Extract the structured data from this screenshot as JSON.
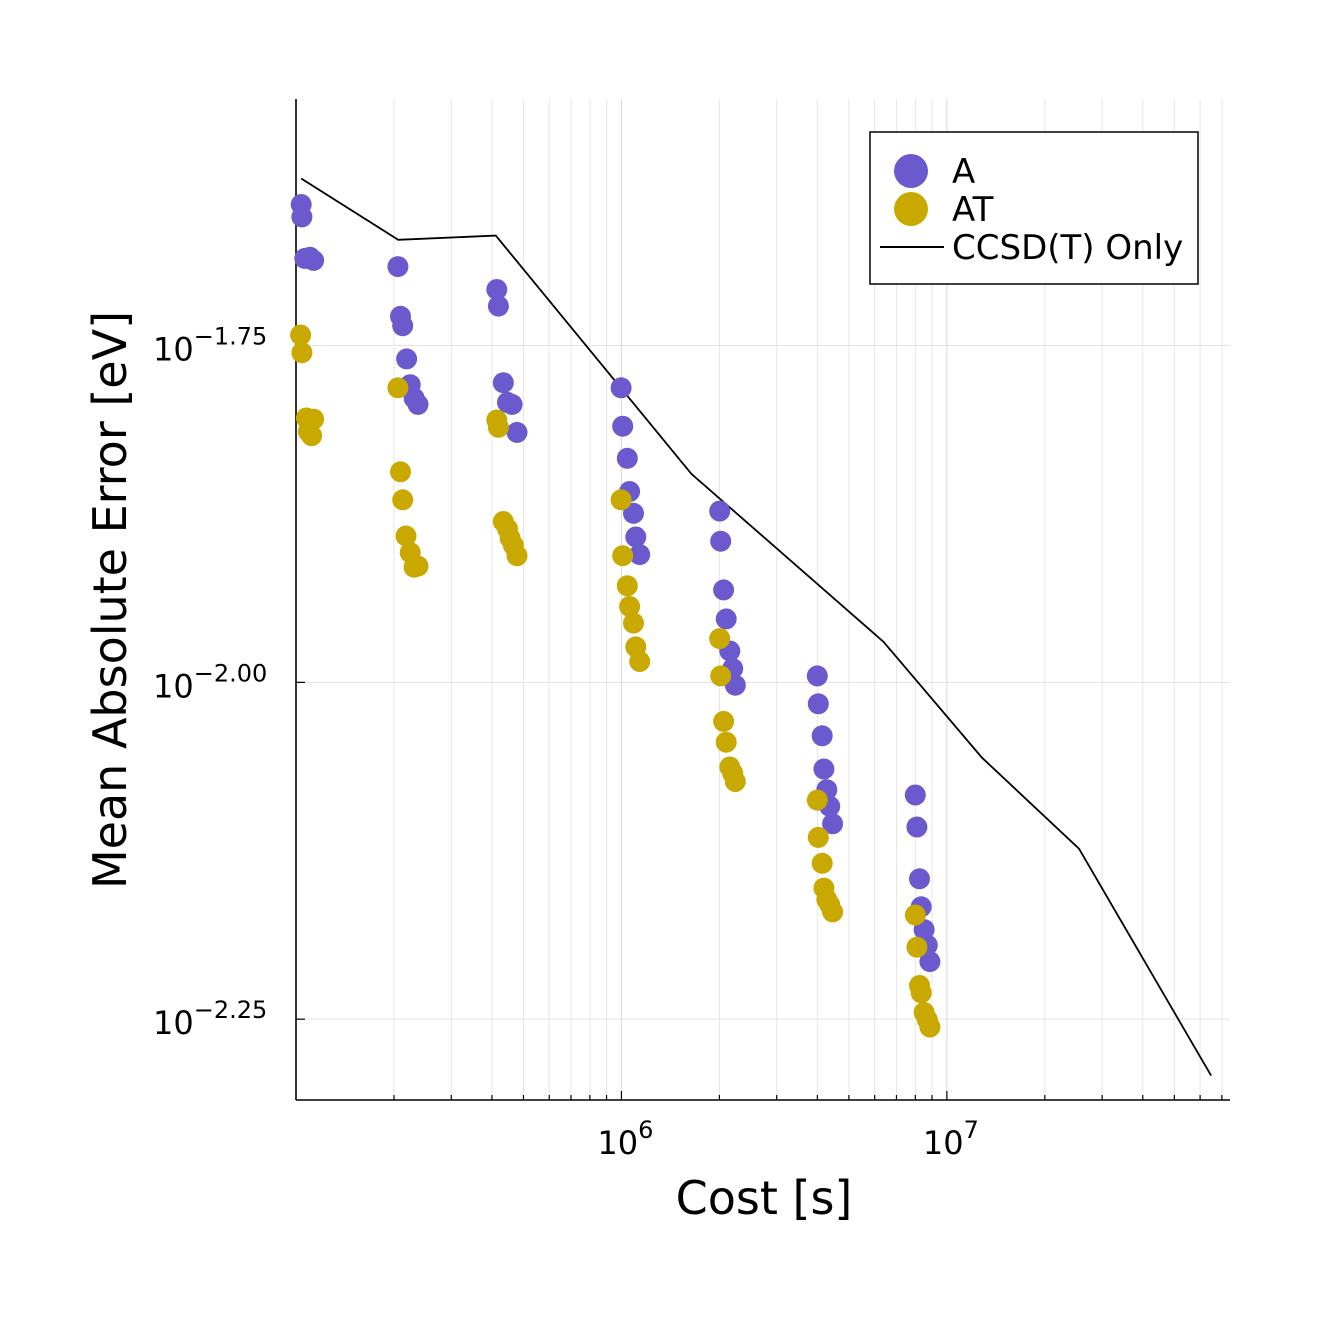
{
  "chart_data": {
    "type": "scatter",
    "title": "",
    "xlabel": "Cost [s]",
    "ylabel": "Mean Absolute Error [eV]",
    "xscale": "log10",
    "yscale": "log10",
    "xlim_log10": [
      5.0,
      7.87
    ],
    "ylim_log10": [
      -2.31,
      -1.567
    ],
    "x_ticks": [
      {
        "exp": 6,
        "base": "10",
        "sup": "6"
      },
      {
        "exp": 7,
        "base": "10",
        "sup": "7"
      }
    ],
    "y_ticks": [
      {
        "exp": -1.75,
        "base": "10",
        "sup": "−1.75"
      },
      {
        "exp": -2.0,
        "base": "10",
        "sup": "−2.00"
      },
      {
        "exp": -2.25,
        "base": "10",
        "sup": "−2.25"
      }
    ],
    "grid": true,
    "legend_position": "top-right",
    "series": [
      {
        "name": "A",
        "kind": "scatter",
        "color": "#6a5acd",
        "points_log10": [
          [
            5.016,
            -1.6453
          ],
          [
            5.018,
            -1.6545
          ],
          [
            5.027,
            -1.6853
          ],
          [
            5.043,
            -1.6845
          ],
          [
            5.054,
            -1.6868
          ],
          [
            5.313,
            -1.6914
          ],
          [
            5.321,
            -1.7283
          ],
          [
            5.328,
            -1.7353
          ],
          [
            5.34,
            -1.7599
          ],
          [
            5.351,
            -1.7791
          ],
          [
            5.363,
            -1.7891
          ],
          [
            5.375,
            -1.7937
          ],
          [
            5.617,
            -1.7084
          ],
          [
            5.622,
            -1.7207
          ],
          [
            5.637,
            -1.7776
          ],
          [
            5.65,
            -1.7922
          ],
          [
            5.664,
            -1.7937
          ],
          [
            5.679,
            -1.8145
          ],
          [
            5.999,
            -1.7814
          ],
          [
            6.004,
            -1.8099
          ],
          [
            6.018,
            -1.8337
          ],
          [
            6.025,
            -1.8583
          ],
          [
            6.037,
            -1.8745
          ],
          [
            6.044,
            -1.8921
          ],
          [
            6.056,
            -1.9052
          ],
          [
            6.302,
            -1.8729
          ],
          [
            6.305,
            -1.8952
          ],
          [
            6.314,
            -1.9314
          ],
          [
            6.322,
            -1.9529
          ],
          [
            6.333,
            -1.9767
          ],
          [
            6.342,
            -1.9898
          ],
          [
            6.35,
            -2.0021
          ],
          [
            6.602,
            -1.9952
          ],
          [
            6.605,
            -2.0159
          ],
          [
            6.617,
            -2.0397
          ],
          [
            6.622,
            -2.0643
          ],
          [
            6.631,
            -2.0797
          ],
          [
            6.64,
            -2.092
          ],
          [
            6.649,
            -2.105
          ],
          [
            6.903,
            -2.0836
          ],
          [
            6.908,
            -2.1074
          ],
          [
            6.916,
            -2.1458
          ],
          [
            6.921,
            -2.1666
          ],
          [
            6.93,
            -2.1835
          ],
          [
            6.94,
            -2.195
          ],
          [
            6.948,
            -2.2073
          ]
        ]
      },
      {
        "name": "AT",
        "kind": "scatter",
        "color": "#c9a900",
        "points_log10": [
          [
            5.014,
            -1.7422
          ],
          [
            5.018,
            -1.7553
          ],
          [
            5.032,
            -1.8038
          ],
          [
            5.038,
            -1.8138
          ],
          [
            5.048,
            -1.8169
          ],
          [
            5.054,
            -1.8046
          ],
          [
            5.313,
            -1.7814
          ],
          [
            5.321,
            -1.8437
          ],
          [
            5.328,
            -1.8645
          ],
          [
            5.338,
            -1.8914
          ],
          [
            5.351,
            -1.9037
          ],
          [
            5.363,
            -1.9145
          ],
          [
            5.375,
            -1.9137
          ],
          [
            5.617,
            -1.8053
          ],
          [
            5.622,
            -1.8107
          ],
          [
            5.637,
            -1.8806
          ],
          [
            5.65,
            -1.886
          ],
          [
            5.658,
            -1.8929
          ],
          [
            5.668,
            -1.8983
          ],
          [
            5.679,
            -1.906
          ],
          [
            5.999,
            -1.8645
          ],
          [
            6.004,
            -1.906
          ],
          [
            6.018,
            -1.9283
          ],
          [
            6.025,
            -1.9437
          ],
          [
            6.037,
            -1.956
          ],
          [
            6.044,
            -1.9737
          ],
          [
            6.056,
            -1.9845
          ],
          [
            6.302,
            -1.9675
          ],
          [
            6.305,
            -1.9952
          ],
          [
            6.314,
            -2.029
          ],
          [
            6.322,
            -2.0444
          ],
          [
            6.333,
            -2.0628
          ],
          [
            6.342,
            -2.0674
          ],
          [
            6.35,
            -2.0736
          ],
          [
            6.602,
            -2.0874
          ],
          [
            6.605,
            -2.1151
          ],
          [
            6.617,
            -2.1343
          ],
          [
            6.622,
            -2.1527
          ],
          [
            6.631,
            -2.1612
          ],
          [
            6.64,
            -2.165
          ],
          [
            6.649,
            -2.1704
          ],
          [
            6.903,
            -2.1727
          ],
          [
            6.908,
            -2.1966
          ],
          [
            6.916,
            -2.225
          ],
          [
            6.921,
            -2.2304
          ],
          [
            6.93,
            -2.245
          ],
          [
            6.94,
            -2.2504
          ],
          [
            6.948,
            -2.2558
          ]
        ]
      },
      {
        "name": "CCSD(T) Only",
        "kind": "line",
        "color": "#000000",
        "points_log10": [
          [
            5.016,
            -1.626
          ],
          [
            5.314,
            -1.6715
          ],
          [
            5.614,
            -1.6684
          ],
          [
            6.215,
            -1.8453
          ],
          [
            6.805,
            -1.9698
          ],
          [
            7.108,
            -2.0559
          ],
          [
            7.406,
            -2.1235
          ],
          [
            7.812,
            -2.2919
          ]
        ]
      }
    ]
  }
}
